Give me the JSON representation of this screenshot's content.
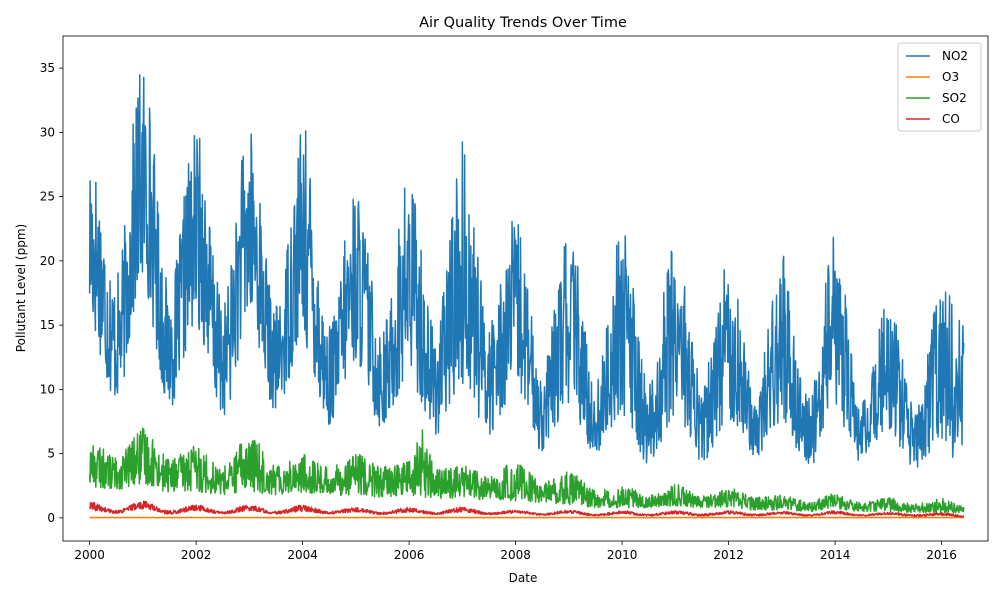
{
  "chart_data": {
    "type": "line",
    "title": "Air Quality Trends Over Time",
    "xlabel": "Date",
    "ylabel": "Pollutant Level (ppm)",
    "xlim": [
      "1999-07-01",
      "2016-11-15"
    ],
    "ylim": [
      -1.8,
      37.5
    ],
    "x_ticks": [
      "2000",
      "2002",
      "2004",
      "2006",
      "2008",
      "2010",
      "2012",
      "2014",
      "2016"
    ],
    "y_ticks": [
      "0",
      "5",
      "10",
      "15",
      "20",
      "25",
      "30",
      "35"
    ],
    "legend_position": "top-right",
    "grid": false,
    "series": [
      {
        "name": "NO2",
        "color": "#1f77b4",
        "seasonal_envelope": [
          {
            "date": "2000-01",
            "low": 14.6,
            "high": 29.2
          },
          {
            "date": "2000-07",
            "low": 9.0,
            "high": 19.0
          },
          {
            "date": "2001-01",
            "low": 17.8,
            "high": 35.7
          },
          {
            "date": "2001-07",
            "low": 8.6,
            "high": 18.0
          },
          {
            "date": "2002-01",
            "low": 14.8,
            "high": 30.4
          },
          {
            "date": "2002-07",
            "low": 7.9,
            "high": 17.2
          },
          {
            "date": "2003-01",
            "low": 15.0,
            "high": 30.4
          },
          {
            "date": "2003-07",
            "low": 8.3,
            "high": 16.5
          },
          {
            "date": "2004-01",
            "low": 13.3,
            "high": 30.7
          },
          {
            "date": "2004-07",
            "low": 7.2,
            "high": 15.0
          },
          {
            "date": "2005-01",
            "low": 12.0,
            "high": 25.8
          },
          {
            "date": "2005-07",
            "low": 6.9,
            "high": 15.0
          },
          {
            "date": "2006-01",
            "low": 10.7,
            "high": 27.0
          },
          {
            "date": "2006-07",
            "low": 6.5,
            "high": 14.9
          },
          {
            "date": "2007-01",
            "low": 10.2,
            "high": 29.3
          },
          {
            "date": "2007-07",
            "low": 6.5,
            "high": 15.8
          },
          {
            "date": "2008-01",
            "low": 10.0,
            "high": 23.5
          },
          {
            "date": "2008-07",
            "low": 5.2,
            "high": 11.6
          },
          {
            "date": "2009-01",
            "low": 8.6,
            "high": 22.8
          },
          {
            "date": "2009-07",
            "low": 4.8,
            "high": 10.8
          },
          {
            "date": "2010-01",
            "low": 8.0,
            "high": 22.9
          },
          {
            "date": "2010-07",
            "low": 4.1,
            "high": 10.5
          },
          {
            "date": "2011-01",
            "low": 7.9,
            "high": 22.5
          },
          {
            "date": "2011-07",
            "low": 4.2,
            "high": 10.8
          },
          {
            "date": "2012-01",
            "low": 7.6,
            "high": 21.3
          },
          {
            "date": "2012-07",
            "low": 4.7,
            "high": 10.1
          },
          {
            "date": "2013-01",
            "low": 7.5,
            "high": 20.5
          },
          {
            "date": "2013-07",
            "low": 3.8,
            "high": 9.5
          },
          {
            "date": "2014-01",
            "low": 8.0,
            "high": 22.0
          },
          {
            "date": "2014-07",
            "low": 4.3,
            "high": 9.0
          },
          {
            "date": "2015-01",
            "low": 6.7,
            "high": 16.9
          },
          {
            "date": "2015-07",
            "low": 3.8,
            "high": 8.6
          },
          {
            "date": "2016-01",
            "low": 6.1,
            "high": 18.1
          },
          {
            "date": "2016-06",
            "low": 3.2,
            "high": 15.3
          }
        ]
      },
      {
        "name": "O3",
        "color": "#ff7f0e",
        "seasonal_envelope": [
          {
            "date": "2000-01",
            "low": 0.01,
            "high": 0.04
          },
          {
            "date": "2008-01",
            "low": 0.01,
            "high": 0.04
          },
          {
            "date": "2016-06",
            "low": 0.01,
            "high": 0.04
          }
        ]
      },
      {
        "name": "SO2",
        "color": "#2ca02c",
        "seasonal_envelope": [
          {
            "date": "2000-01",
            "low": 2.4,
            "high": 6.0
          },
          {
            "date": "2000-07",
            "low": 2.2,
            "high": 4.8
          },
          {
            "date": "2001-01",
            "low": 2.6,
            "high": 7.0
          },
          {
            "date": "2001-07",
            "low": 2.0,
            "high": 4.7
          },
          {
            "date": "2002-01",
            "low": 2.0,
            "high": 5.7
          },
          {
            "date": "2002-07",
            "low": 1.8,
            "high": 4.0
          },
          {
            "date": "2003-01",
            "low": 2.0,
            "high": 6.6
          },
          {
            "date": "2003-07",
            "low": 1.8,
            "high": 4.2
          },
          {
            "date": "2004-01",
            "low": 1.9,
            "high": 5.0
          },
          {
            "date": "2004-07",
            "low": 1.7,
            "high": 4.0
          },
          {
            "date": "2005-01",
            "low": 1.8,
            "high": 5.0
          },
          {
            "date": "2005-07",
            "low": 1.6,
            "high": 4.0
          },
          {
            "date": "2006-01",
            "low": 1.7,
            "high": 4.5
          },
          {
            "date": "2006-04",
            "low": 1.5,
            "high": 6.9
          },
          {
            "date": "2006-07",
            "low": 1.5,
            "high": 3.8
          },
          {
            "date": "2007-01",
            "low": 1.5,
            "high": 4.2
          },
          {
            "date": "2007-07",
            "low": 1.3,
            "high": 3.2
          },
          {
            "date": "2008-01",
            "low": 1.3,
            "high": 4.4
          },
          {
            "date": "2008-07",
            "low": 1.2,
            "high": 2.8
          },
          {
            "date": "2009-01",
            "low": 1.0,
            "high": 3.6
          },
          {
            "date": "2009-07",
            "low": 0.8,
            "high": 2.2
          },
          {
            "date": "2010-01",
            "low": 0.8,
            "high": 2.6
          },
          {
            "date": "2010-07",
            "low": 0.8,
            "high": 1.8
          },
          {
            "date": "2011-01",
            "low": 0.9,
            "high": 2.6
          },
          {
            "date": "2011-07",
            "low": 0.8,
            "high": 1.7
          },
          {
            "date": "2012-01",
            "low": 0.8,
            "high": 2.4
          },
          {
            "date": "2012-07",
            "low": 0.6,
            "high": 1.6
          },
          {
            "date": "2013-01",
            "low": 0.6,
            "high": 1.8
          },
          {
            "date": "2013-07",
            "low": 0.5,
            "high": 1.3
          },
          {
            "date": "2014-01",
            "low": 0.7,
            "high": 1.9
          },
          {
            "date": "2014-07",
            "low": 0.5,
            "high": 1.2
          },
          {
            "date": "2015-01",
            "low": 0.5,
            "high": 1.6
          },
          {
            "date": "2015-07",
            "low": 0.4,
            "high": 1.1
          },
          {
            "date": "2016-01",
            "low": 0.4,
            "high": 1.5
          },
          {
            "date": "2016-06",
            "low": 0.3,
            "high": 0.9
          }
        ]
      },
      {
        "name": "CO",
        "color": "#d62728",
        "seasonal_envelope": [
          {
            "date": "2000-01",
            "low": 0.55,
            "high": 1.25
          },
          {
            "date": "2000-07",
            "low": 0.35,
            "high": 0.6
          },
          {
            "date": "2001-01",
            "low": 0.7,
            "high": 1.3
          },
          {
            "date": "2001-07",
            "low": 0.3,
            "high": 0.55
          },
          {
            "date": "2002-01",
            "low": 0.55,
            "high": 1.0
          },
          {
            "date": "2002-07",
            "low": 0.3,
            "high": 0.5
          },
          {
            "date": "2003-01",
            "low": 0.55,
            "high": 1.0
          },
          {
            "date": "2003-07",
            "low": 0.3,
            "high": 0.5
          },
          {
            "date": "2004-01",
            "low": 0.5,
            "high": 1.0
          },
          {
            "date": "2004-07",
            "low": 0.3,
            "high": 0.5
          },
          {
            "date": "2005-01",
            "low": 0.45,
            "high": 0.8
          },
          {
            "date": "2005-07",
            "low": 0.25,
            "high": 0.45
          },
          {
            "date": "2006-01",
            "low": 0.45,
            "high": 0.85
          },
          {
            "date": "2006-07",
            "low": 0.25,
            "high": 0.45
          },
          {
            "date": "2007-01",
            "low": 0.45,
            "high": 0.85
          },
          {
            "date": "2007-07",
            "low": 0.25,
            "high": 0.4
          },
          {
            "date": "2008-01",
            "low": 0.35,
            "high": 0.6
          },
          {
            "date": "2008-07",
            "low": 0.2,
            "high": 0.35
          },
          {
            "date": "2009-01",
            "low": 0.35,
            "high": 0.6
          },
          {
            "date": "2009-07",
            "low": 0.15,
            "high": 0.3
          },
          {
            "date": "2010-01",
            "low": 0.3,
            "high": 0.55
          },
          {
            "date": "2010-07",
            "low": 0.15,
            "high": 0.3
          },
          {
            "date": "2011-01",
            "low": 0.3,
            "high": 0.55
          },
          {
            "date": "2011-07",
            "low": 0.15,
            "high": 0.3
          },
          {
            "date": "2012-01",
            "low": 0.3,
            "high": 0.55
          },
          {
            "date": "2012-07",
            "low": 0.15,
            "high": 0.3
          },
          {
            "date": "2013-01",
            "low": 0.3,
            "high": 0.5
          },
          {
            "date": "2013-07",
            "low": 0.15,
            "high": 0.25
          },
          {
            "date": "2014-01",
            "low": 0.3,
            "high": 0.55
          },
          {
            "date": "2014-07",
            "low": 0.15,
            "high": 0.25
          },
          {
            "date": "2015-01",
            "low": 0.25,
            "high": 0.45
          },
          {
            "date": "2015-07",
            "low": 0.1,
            "high": 0.25
          },
          {
            "date": "2016-01",
            "low": 0.2,
            "high": 0.4
          },
          {
            "date": "2016-06",
            "low": 0.05,
            "high": 0.2
          }
        ]
      }
    ]
  }
}
